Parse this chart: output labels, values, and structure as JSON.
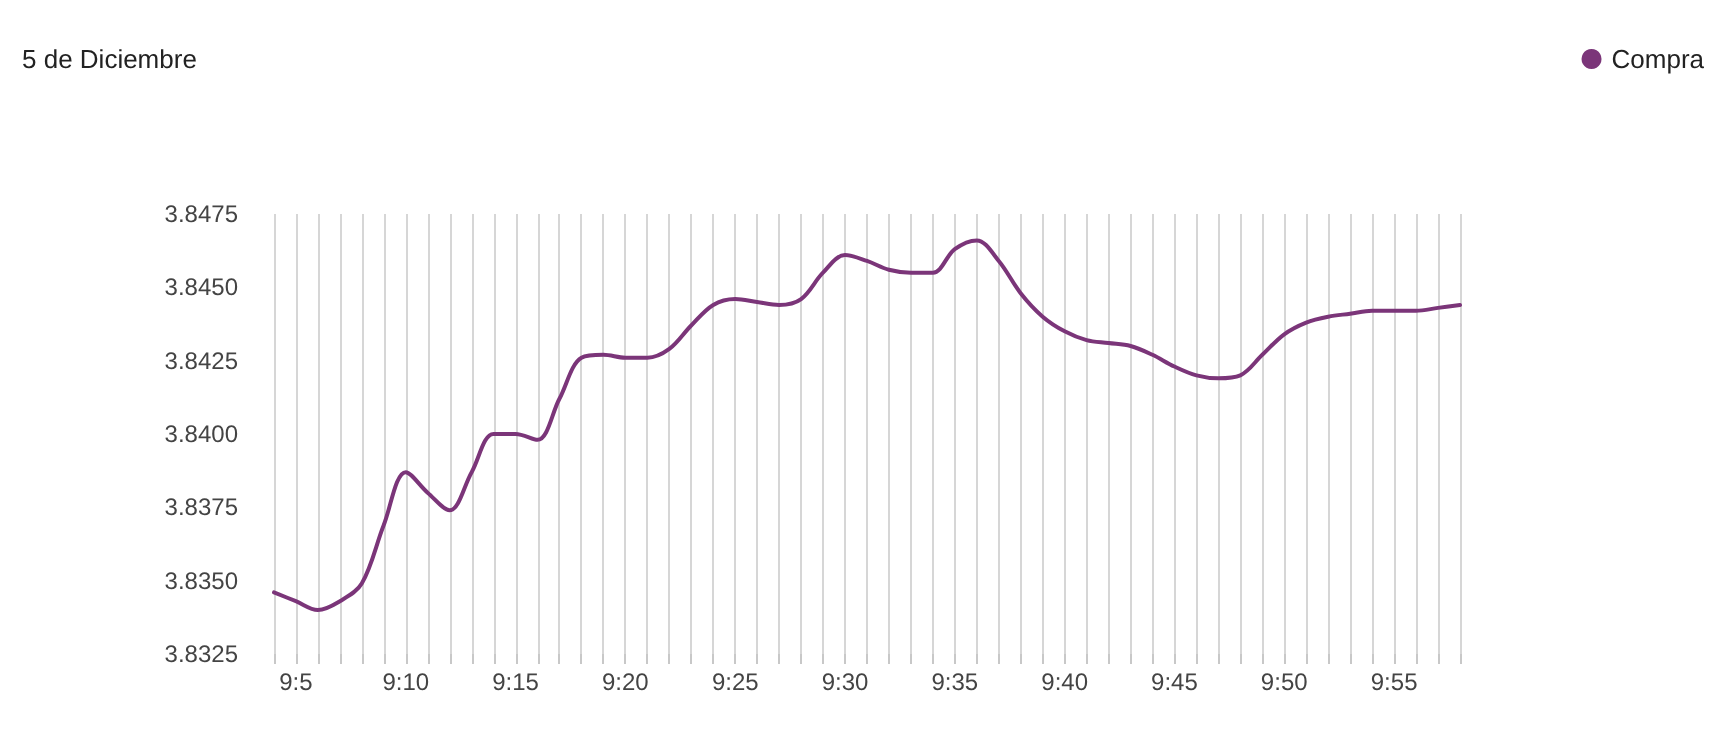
{
  "chart_data": {
    "type": "line",
    "title": "5 de Diciembre",
    "legend": "top right",
    "grid": "x",
    "marker": "none",
    "x": [
      9.0667,
      9.0833,
      9.1,
      9.1167,
      9.1333,
      9.15,
      9.1667,
      9.1833,
      9.2,
      9.2167,
      9.2333,
      9.25,
      9.2667,
      9.2833,
      9.3,
      9.3167,
      9.3333,
      9.35,
      9.3667,
      9.3833,
      9.4,
      9.4167,
      9.4333,
      9.45,
      9.4667,
      9.4833,
      9.5,
      9.5167,
      9.5333,
      9.55,
      9.5667,
      9.5833,
      9.6,
      9.6167,
      9.6333,
      9.65,
      9.6667,
      9.6833,
      9.7,
      9.7167,
      9.7333,
      9.75,
      9.7667,
      9.7833,
      9.8,
      9.8167,
      9.8333,
      9.85,
      9.8667,
      9.8833,
      9.9,
      9.9167,
      9.9333,
      9.95,
      9.9667
    ],
    "series": [
      {
        "name": "Compra",
        "color": "#7b3579",
        "values": [
          3.8346,
          3.8343,
          3.834,
          3.8343,
          3.8349,
          3.8369,
          3.8387,
          3.838,
          3.8374,
          3.8387,
          3.84,
          3.84,
          3.8398,
          3.8412,
          3.8426,
          3.8427,
          3.8426,
          3.8426,
          3.8429,
          3.8437,
          3.8444,
          3.8446,
          3.8445,
          3.8444,
          3.8446,
          3.8455,
          3.8461,
          3.8459,
          3.8456,
          3.8455,
          3.8455,
          3.8463,
          3.8466,
          3.8459,
          3.8448,
          3.844,
          3.8435,
          3.8432,
          3.8431,
          3.843,
          3.8427,
          3.8423,
          3.842,
          3.8419,
          3.842,
          3.8427,
          3.8434,
          3.8438,
          3.844,
          3.8441,
          3.8442,
          3.8442,
          3.8442,
          3.8443,
          3.8444
        ]
      }
    ],
    "xlim": [
      9.0667,
      9.9667
    ],
    "xticks": [
      {
        "value": 9.0667,
        "label": null
      },
      {
        "value": 9.0833,
        "label": "9:5"
      },
      {
        "value": 9.1,
        "label": null
      },
      {
        "value": 9.1167,
        "label": null
      },
      {
        "value": 9.1333,
        "label": null
      },
      {
        "value": 9.15,
        "label": null
      },
      {
        "value": 9.1667,
        "label": "9:10"
      },
      {
        "value": 9.1833,
        "label": null
      },
      {
        "value": 9.2,
        "label": null
      },
      {
        "value": 9.2167,
        "label": null
      },
      {
        "value": 9.2333,
        "label": null
      },
      {
        "value": 9.25,
        "label": "9:15"
      },
      {
        "value": 9.2667,
        "label": null
      },
      {
        "value": 9.2833,
        "label": null
      },
      {
        "value": 9.3,
        "label": null
      },
      {
        "value": 9.3167,
        "label": null
      },
      {
        "value": 9.3333,
        "label": "9:20"
      },
      {
        "value": 9.35,
        "label": null
      },
      {
        "value": 9.3667,
        "label": null
      },
      {
        "value": 9.3833,
        "label": null
      },
      {
        "value": 9.4,
        "label": null
      },
      {
        "value": 9.4167,
        "label": "9:25"
      },
      {
        "value": 9.4333,
        "label": null
      },
      {
        "value": 9.45,
        "label": null
      },
      {
        "value": 9.4667,
        "label": null
      },
      {
        "value": 9.4833,
        "label": null
      },
      {
        "value": 9.5,
        "label": "9:30"
      },
      {
        "value": 9.5167,
        "label": null
      },
      {
        "value": 9.5333,
        "label": null
      },
      {
        "value": 9.55,
        "label": null
      },
      {
        "value": 9.5667,
        "label": null
      },
      {
        "value": 9.5833,
        "label": "9:35"
      },
      {
        "value": 9.6,
        "label": null
      },
      {
        "value": 9.6167,
        "label": null
      },
      {
        "value": 9.6333,
        "label": null
      },
      {
        "value": 9.65,
        "label": null
      },
      {
        "value": 9.6667,
        "label": "9:40"
      },
      {
        "value": 9.6833,
        "label": null
      },
      {
        "value": 9.7,
        "label": null
      },
      {
        "value": 9.7167,
        "label": null
      },
      {
        "value": 9.7333,
        "label": null
      },
      {
        "value": 9.75,
        "label": "9:45"
      },
      {
        "value": 9.7667,
        "label": null
      },
      {
        "value": 9.7833,
        "label": null
      },
      {
        "value": 9.8,
        "label": null
      },
      {
        "value": 9.8167,
        "label": null
      },
      {
        "value": 9.8333,
        "label": "9:50"
      },
      {
        "value": 9.85,
        "label": null
      },
      {
        "value": 9.8667,
        "label": null
      },
      {
        "value": 9.8833,
        "label": null
      },
      {
        "value": 9.9,
        "label": null
      },
      {
        "value": 9.9167,
        "label": "9:55"
      },
      {
        "value": 9.9333,
        "label": null
      },
      {
        "value": 9.95,
        "label": null
      },
      {
        "value": 9.9667,
        "label": null
      }
    ],
    "ylim": [
      3.8325,
      3.8475
    ],
    "yticks": [
      {
        "value": 3.8325,
        "label": "3.8325"
      },
      {
        "value": 3.835,
        "label": "3.8350"
      },
      {
        "value": 3.8375,
        "label": "3.8375"
      },
      {
        "value": 3.84,
        "label": "3.8400"
      },
      {
        "value": 3.8425,
        "label": "3.8425"
      },
      {
        "value": 3.845,
        "label": "3.8450"
      },
      {
        "value": 3.8475,
        "label": "3.8475"
      }
    ]
  }
}
